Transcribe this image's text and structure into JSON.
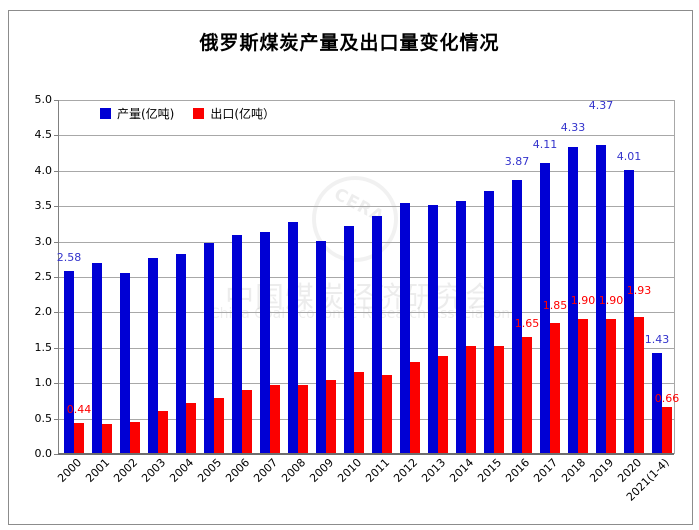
{
  "title": "俄罗斯煤炭产量及出口量变化情况",
  "watermark": {
    "circle_text": "CERA",
    "line1": "中国煤炭经济研究会",
    "line2": "China Coal Economic Research Association"
  },
  "colors": {
    "production_bar": "#0000d4",
    "export_bar": "#fb0000",
    "production_label": "#3333cc",
    "export_label": "#ff0000",
    "gridline": "#a8a8a8"
  },
  "chart_data": {
    "type": "bar",
    "title": "俄罗斯煤炭产量及出口量变化情况",
    "categories": [
      "2000",
      "2001",
      "2002",
      "2003",
      "2004",
      "2005",
      "2006",
      "2007",
      "2008",
      "2009",
      "2010",
      "2011",
      "2012",
      "2013",
      "2014",
      "2015",
      "2016",
      "2017",
      "2018",
      "2019",
      "2020",
      "2021(1-4)"
    ],
    "series": [
      {
        "name": "产量(亿吨)",
        "color": "#0000d4",
        "label_color": "#3333cc",
        "values": [
          2.58,
          2.7,
          2.56,
          2.77,
          2.82,
          2.98,
          3.09,
          3.14,
          3.28,
          3.01,
          3.22,
          3.36,
          3.55,
          3.52,
          3.58,
          3.72,
          3.87,
          4.11,
          4.33,
          4.37,
          4.01,
          1.43
        ],
        "labels": {
          "0": "2.58",
          "16": "3.87",
          "17": "4.11",
          "18": "4.33",
          "19": "4.37",
          "20": "4.01",
          "21": "1.43"
        }
      },
      {
        "name": "出口(亿吨）",
        "color": "#fb0000",
        "label_color": "#ff0000",
        "values": [
          0.44,
          0.42,
          0.45,
          0.61,
          0.72,
          0.79,
          0.91,
          0.98,
          0.97,
          1.05,
          1.16,
          1.11,
          1.3,
          1.39,
          1.52,
          1.52,
          1.65,
          1.85,
          1.9,
          1.9,
          1.93,
          0.66
        ],
        "labels": {
          "0": "0.44",
          "16": "1.65",
          "17": "1.85",
          "18": "1.90",
          "19": "1.90",
          "20": "1.93",
          "21": "0.66"
        }
      }
    ],
    "ylim": [
      0,
      5
    ],
    "ytick_step": 0.5,
    "yticks": [
      "5.0",
      "4.5",
      "4.0",
      "3.5",
      "3.0",
      "2.5",
      "2.0",
      "1.5",
      "1.0",
      "0.5",
      "0.0"
    ],
    "xlabel": "",
    "ylabel": "",
    "grid": true,
    "legend_position": "top-left-inside"
  }
}
